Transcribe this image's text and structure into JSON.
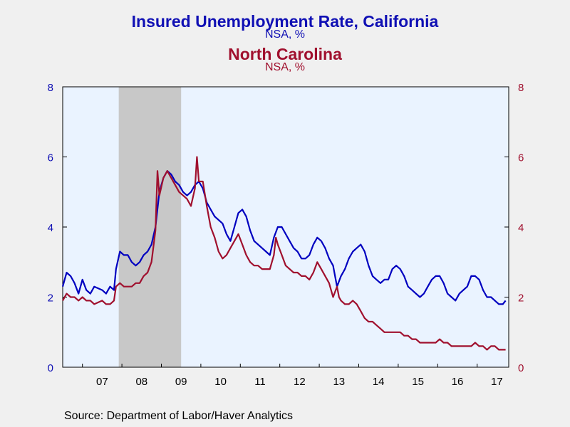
{
  "header": {
    "title1": "Insured Unemployment Rate, California",
    "subtitle1": "NSA, %",
    "title2": "North Carolina",
    "subtitle2": "NSA, %"
  },
  "footer": {
    "source": "Source:  Department of Labor/Haver Analytics"
  },
  "chart_data": {
    "type": "line",
    "title": "Insured Unemployment Rate, California / North Carolina",
    "x_range": [
      2006.5,
      2017.8
    ],
    "ylim_left": [
      0,
      8
    ],
    "ylim_right": [
      0,
      8
    ],
    "y_ticks": [
      0,
      2,
      4,
      6,
      8
    ],
    "x_tick_labels": [
      "07",
      "08",
      "09",
      "10",
      "11",
      "12",
      "13",
      "14",
      "15",
      "16",
      "17"
    ],
    "recession_shading": [
      2007.92,
      2009.5
    ],
    "grid": false,
    "colors": {
      "california": "#0000c0",
      "north_carolina": "#a0102e",
      "recession": "#c8c8c8",
      "plot_bg": "#eaf3ff"
    },
    "series": [
      {
        "name": "California",
        "axis": "left",
        "points": [
          [
            2006.5,
            2.3
          ],
          [
            2006.6,
            2.7
          ],
          [
            2006.7,
            2.6
          ],
          [
            2006.8,
            2.4
          ],
          [
            2006.9,
            2.1
          ],
          [
            2007.0,
            2.5
          ],
          [
            2007.1,
            2.2
          ],
          [
            2007.2,
            2.1
          ],
          [
            2007.3,
            2.3
          ],
          [
            2007.5,
            2.2
          ],
          [
            2007.6,
            2.1
          ],
          [
            2007.7,
            2.3
          ],
          [
            2007.8,
            2.2
          ],
          [
            2007.85,
            2.8
          ],
          [
            2007.95,
            3.3
          ],
          [
            2008.05,
            3.2
          ],
          [
            2008.15,
            3.2
          ],
          [
            2008.25,
            3.0
          ],
          [
            2008.35,
            2.9
          ],
          [
            2008.45,
            3.0
          ],
          [
            2008.55,
            3.2
          ],
          [
            2008.65,
            3.3
          ],
          [
            2008.75,
            3.5
          ],
          [
            2008.85,
            4.0
          ],
          [
            2008.95,
            5.0
          ],
          [
            2009.05,
            5.4
          ],
          [
            2009.15,
            5.6
          ],
          [
            2009.25,
            5.5
          ],
          [
            2009.35,
            5.3
          ],
          [
            2009.45,
            5.2
          ],
          [
            2009.55,
            5.0
          ],
          [
            2009.65,
            4.9
          ],
          [
            2009.75,
            5.0
          ],
          [
            2009.85,
            5.2
          ],
          [
            2009.95,
            5.3
          ],
          [
            2010.05,
            5.1
          ],
          [
            2010.15,
            4.7
          ],
          [
            2010.25,
            4.5
          ],
          [
            2010.35,
            4.3
          ],
          [
            2010.45,
            4.2
          ],
          [
            2010.55,
            4.1
          ],
          [
            2010.65,
            3.8
          ],
          [
            2010.75,
            3.6
          ],
          [
            2010.85,
            4.0
          ],
          [
            2010.95,
            4.4
          ],
          [
            2011.05,
            4.5
          ],
          [
            2011.15,
            4.3
          ],
          [
            2011.25,
            3.9
          ],
          [
            2011.35,
            3.6
          ],
          [
            2011.45,
            3.5
          ],
          [
            2011.55,
            3.4
          ],
          [
            2011.65,
            3.3
          ],
          [
            2011.75,
            3.2
          ],
          [
            2011.85,
            3.7
          ],
          [
            2011.95,
            4.0
          ],
          [
            2012.05,
            4.0
          ],
          [
            2012.15,
            3.8
          ],
          [
            2012.25,
            3.6
          ],
          [
            2012.35,
            3.4
          ],
          [
            2012.45,
            3.3
          ],
          [
            2012.55,
            3.1
          ],
          [
            2012.65,
            3.1
          ],
          [
            2012.75,
            3.2
          ],
          [
            2012.85,
            3.5
          ],
          [
            2012.95,
            3.7
          ],
          [
            2013.05,
            3.6
          ],
          [
            2013.15,
            3.4
          ],
          [
            2013.25,
            3.1
          ],
          [
            2013.35,
            2.9
          ],
          [
            2013.45,
            2.3
          ],
          [
            2013.55,
            2.6
          ],
          [
            2013.65,
            2.8
          ],
          [
            2013.75,
            3.1
          ],
          [
            2013.85,
            3.3
          ],
          [
            2013.95,
            3.4
          ],
          [
            2014.05,
            3.5
          ],
          [
            2014.15,
            3.3
          ],
          [
            2014.25,
            2.9
          ],
          [
            2014.35,
            2.6
          ],
          [
            2014.45,
            2.5
          ],
          [
            2014.55,
            2.4
          ],
          [
            2014.65,
            2.5
          ],
          [
            2014.75,
            2.5
          ],
          [
            2014.85,
            2.8
          ],
          [
            2014.95,
            2.9
          ],
          [
            2015.05,
            2.8
          ],
          [
            2015.15,
            2.6
          ],
          [
            2015.25,
            2.3
          ],
          [
            2015.35,
            2.2
          ],
          [
            2015.45,
            2.1
          ],
          [
            2015.55,
            2.0
          ],
          [
            2015.65,
            2.1
          ],
          [
            2015.75,
            2.3
          ],
          [
            2015.85,
            2.5
          ],
          [
            2015.95,
            2.6
          ],
          [
            2016.05,
            2.6
          ],
          [
            2016.15,
            2.4
          ],
          [
            2016.25,
            2.1
          ],
          [
            2016.35,
            2.0
          ],
          [
            2016.45,
            1.9
          ],
          [
            2016.55,
            2.1
          ],
          [
            2016.65,
            2.2
          ],
          [
            2016.75,
            2.3
          ],
          [
            2016.85,
            2.6
          ],
          [
            2016.95,
            2.6
          ],
          [
            2017.05,
            2.5
          ],
          [
            2017.15,
            2.2
          ],
          [
            2017.25,
            2.0
          ],
          [
            2017.35,
            2.0
          ],
          [
            2017.45,
            1.9
          ],
          [
            2017.55,
            1.8
          ],
          [
            2017.65,
            1.8
          ],
          [
            2017.72,
            1.9
          ]
        ]
      },
      {
        "name": "North Carolina",
        "axis": "right",
        "points": [
          [
            2006.5,
            1.9
          ],
          [
            2006.6,
            2.1
          ],
          [
            2006.7,
            2.0
          ],
          [
            2006.8,
            2.0
          ],
          [
            2006.9,
            1.9
          ],
          [
            2007.0,
            2.0
          ],
          [
            2007.1,
            1.9
          ],
          [
            2007.2,
            1.9
          ],
          [
            2007.3,
            1.8
          ],
          [
            2007.5,
            1.9
          ],
          [
            2007.6,
            1.8
          ],
          [
            2007.7,
            1.8
          ],
          [
            2007.8,
            1.9
          ],
          [
            2007.85,
            2.3
          ],
          [
            2007.95,
            2.4
          ],
          [
            2008.05,
            2.3
          ],
          [
            2008.15,
            2.3
          ],
          [
            2008.25,
            2.3
          ],
          [
            2008.35,
            2.4
          ],
          [
            2008.45,
            2.4
          ],
          [
            2008.55,
            2.6
          ],
          [
            2008.65,
            2.7
          ],
          [
            2008.75,
            3.0
          ],
          [
            2008.85,
            3.9
          ],
          [
            2008.9,
            5.6
          ],
          [
            2008.95,
            4.9
          ],
          [
            2009.05,
            5.4
          ],
          [
            2009.15,
            5.6
          ],
          [
            2009.25,
            5.4
          ],
          [
            2009.35,
            5.2
          ],
          [
            2009.45,
            5.0
          ],
          [
            2009.55,
            4.9
          ],
          [
            2009.65,
            4.8
          ],
          [
            2009.75,
            4.6
          ],
          [
            2009.85,
            5.1
          ],
          [
            2009.9,
            6.0
          ],
          [
            2009.95,
            5.3
          ],
          [
            2010.05,
            5.3
          ],
          [
            2010.15,
            4.6
          ],
          [
            2010.25,
            4.0
          ],
          [
            2010.35,
            3.7
          ],
          [
            2010.45,
            3.3
          ],
          [
            2010.55,
            3.1
          ],
          [
            2010.65,
            3.2
          ],
          [
            2010.75,
            3.4
          ],
          [
            2010.85,
            3.6
          ],
          [
            2010.95,
            3.8
          ],
          [
            2011.05,
            3.5
          ],
          [
            2011.15,
            3.2
          ],
          [
            2011.25,
            3.0
          ],
          [
            2011.35,
            2.9
          ],
          [
            2011.45,
            2.9
          ],
          [
            2011.55,
            2.8
          ],
          [
            2011.65,
            2.8
          ],
          [
            2011.75,
            2.8
          ],
          [
            2011.85,
            3.2
          ],
          [
            2011.9,
            3.7
          ],
          [
            2011.95,
            3.5
          ],
          [
            2012.05,
            3.2
          ],
          [
            2012.15,
            2.9
          ],
          [
            2012.25,
            2.8
          ],
          [
            2012.35,
            2.7
          ],
          [
            2012.45,
            2.7
          ],
          [
            2012.55,
            2.6
          ],
          [
            2012.65,
            2.6
          ],
          [
            2012.75,
            2.5
          ],
          [
            2012.85,
            2.7
          ],
          [
            2012.95,
            3.0
          ],
          [
            2013.05,
            2.8
          ],
          [
            2013.15,
            2.6
          ],
          [
            2013.25,
            2.4
          ],
          [
            2013.35,
            2.0
          ],
          [
            2013.45,
            2.3
          ],
          [
            2013.5,
            2.0
          ],
          [
            2013.55,
            1.9
          ],
          [
            2013.65,
            1.8
          ],
          [
            2013.75,
            1.8
          ],
          [
            2013.85,
            1.9
          ],
          [
            2013.95,
            1.8
          ],
          [
            2014.05,
            1.6
          ],
          [
            2014.15,
            1.4
          ],
          [
            2014.25,
            1.3
          ],
          [
            2014.35,
            1.3
          ],
          [
            2014.45,
            1.2
          ],
          [
            2014.55,
            1.1
          ],
          [
            2014.65,
            1.0
          ],
          [
            2014.75,
            1.0
          ],
          [
            2014.85,
            1.0
          ],
          [
            2014.95,
            1.0
          ],
          [
            2015.05,
            1.0
          ],
          [
            2015.15,
            0.9
          ],
          [
            2015.25,
            0.9
          ],
          [
            2015.35,
            0.8
          ],
          [
            2015.45,
            0.8
          ],
          [
            2015.55,
            0.7
          ],
          [
            2015.65,
            0.7
          ],
          [
            2015.75,
            0.7
          ],
          [
            2015.85,
            0.7
          ],
          [
            2015.95,
            0.7
          ],
          [
            2016.05,
            0.8
          ],
          [
            2016.15,
            0.7
          ],
          [
            2016.25,
            0.7
          ],
          [
            2016.35,
            0.6
          ],
          [
            2016.45,
            0.6
          ],
          [
            2016.55,
            0.6
          ],
          [
            2016.65,
            0.6
          ],
          [
            2016.75,
            0.6
          ],
          [
            2016.85,
            0.6
          ],
          [
            2016.95,
            0.7
          ],
          [
            2017.05,
            0.6
          ],
          [
            2017.15,
            0.6
          ],
          [
            2017.25,
            0.5
          ],
          [
            2017.35,
            0.6
          ],
          [
            2017.45,
            0.6
          ],
          [
            2017.55,
            0.5
          ],
          [
            2017.65,
            0.5
          ],
          [
            2017.72,
            0.5
          ]
        ]
      }
    ]
  }
}
